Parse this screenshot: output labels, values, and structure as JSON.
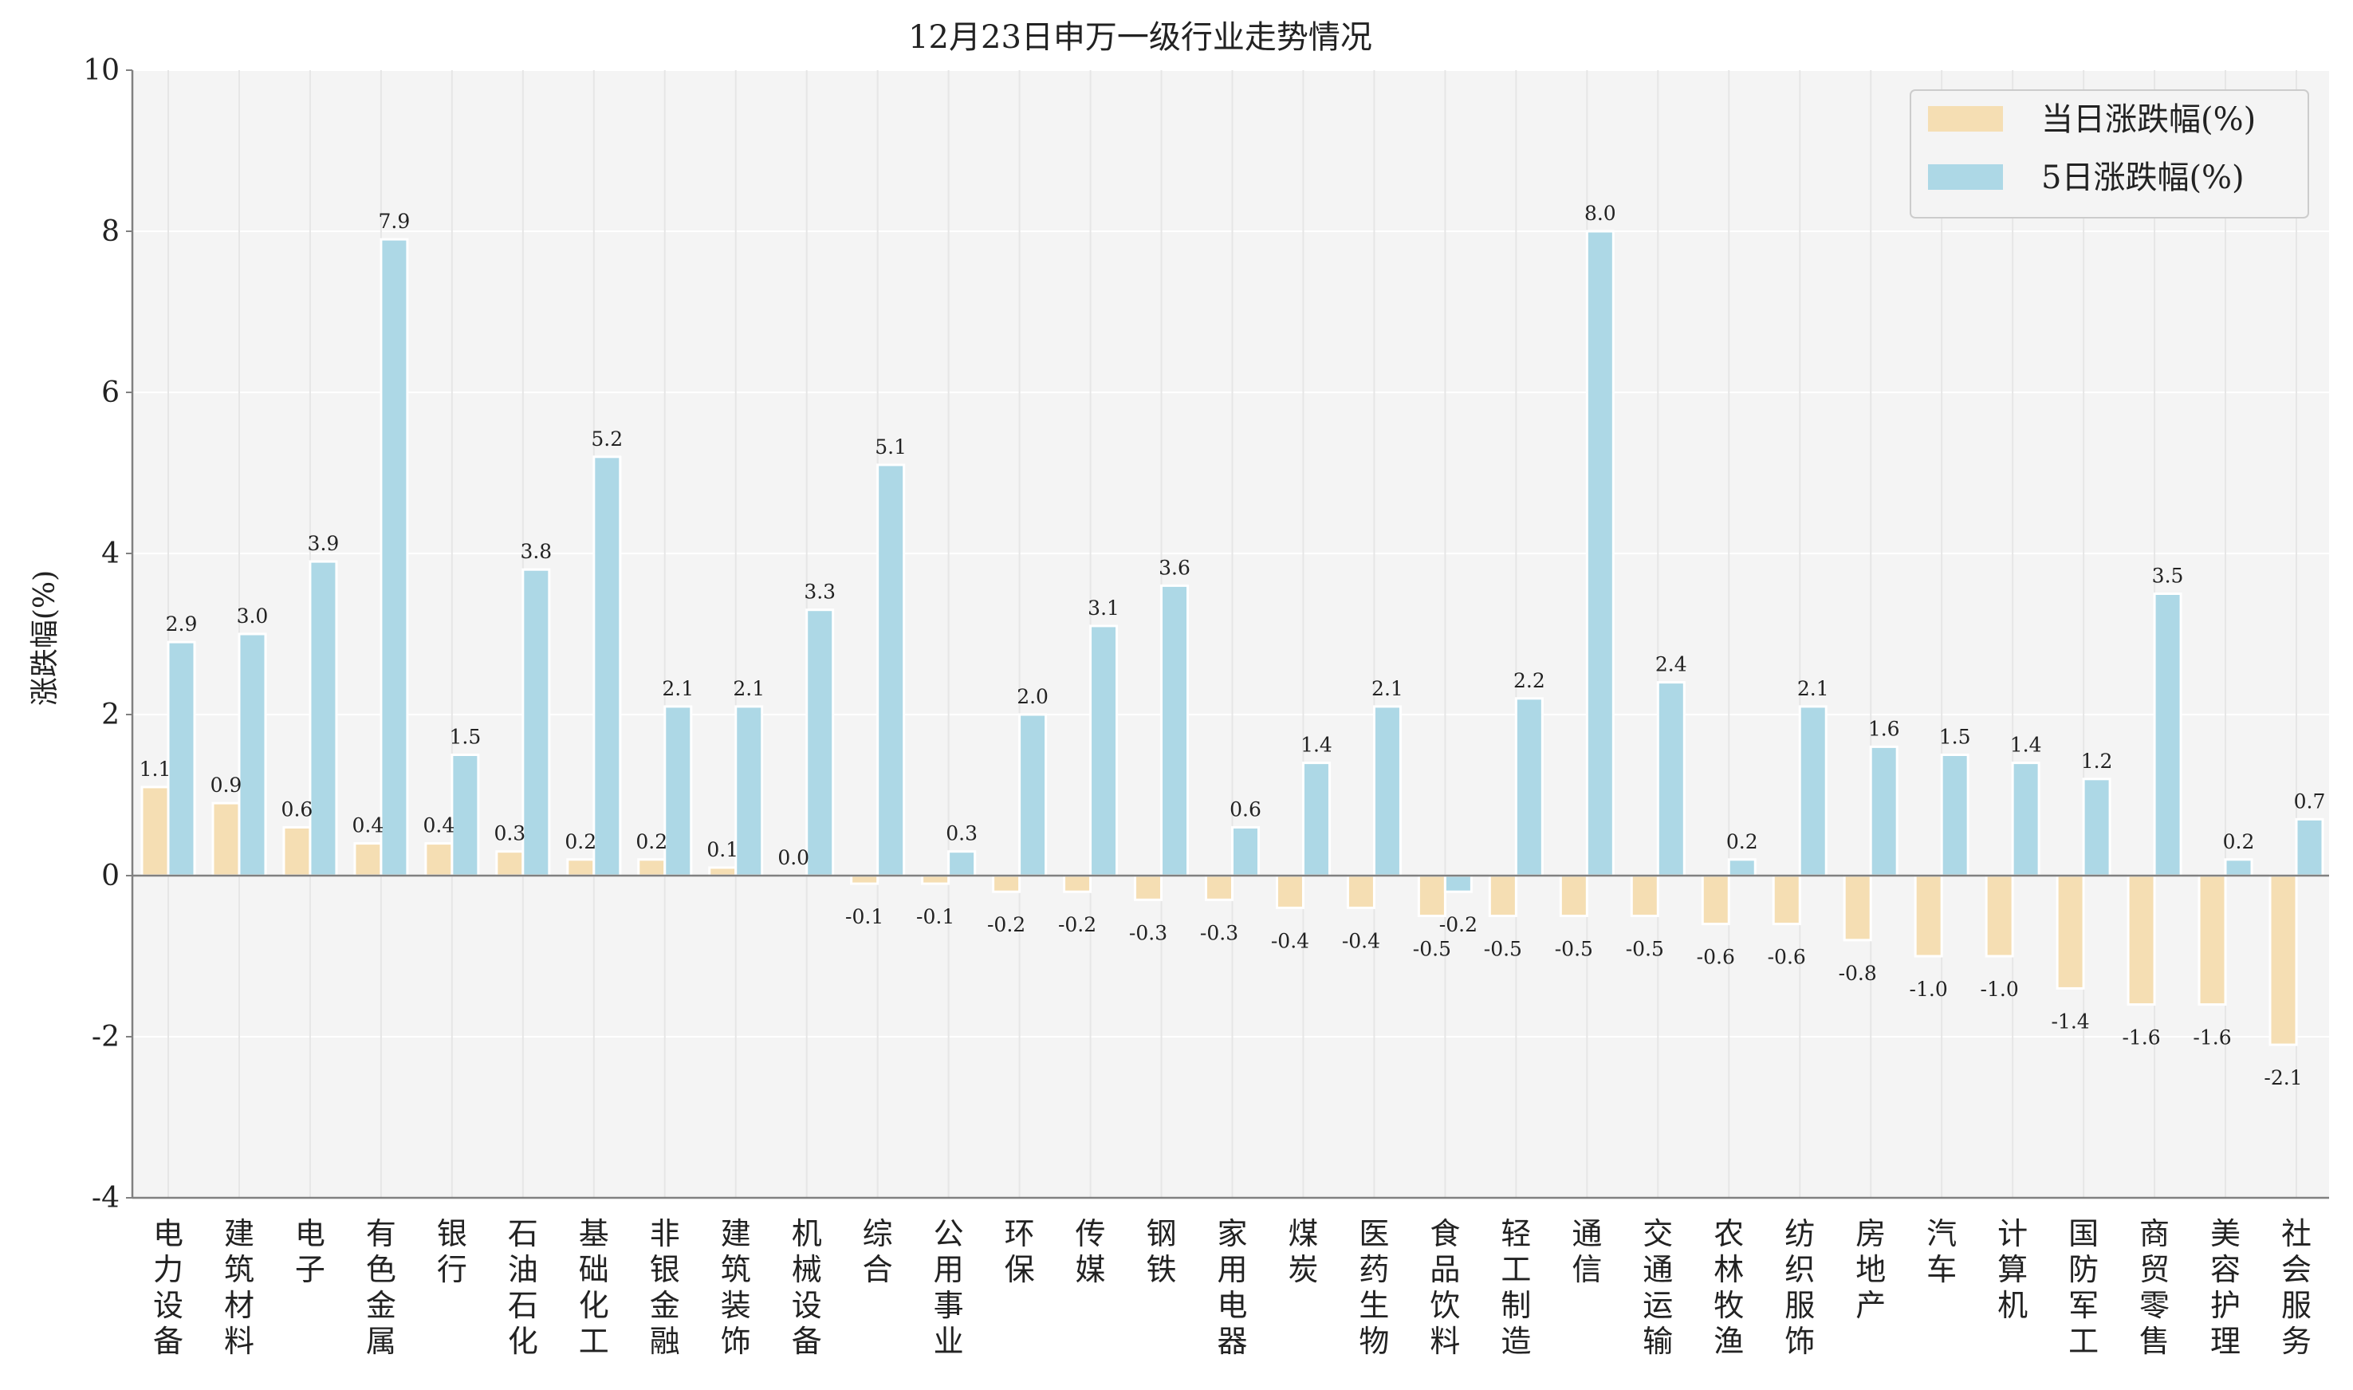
{
  "chart_data": {
    "type": "bar",
    "title": "12月23日申万一级行业走势情况",
    "xlabel": "",
    "ylabel": "涨跌幅(%)",
    "ylim": [
      -4,
      10
    ],
    "yticks": [
      -4,
      -2,
      0,
      2,
      4,
      6,
      8,
      10
    ],
    "grid": true,
    "legend_position": "top-right",
    "categories": [
      "电力设备",
      "建筑材料",
      "电子",
      "有色金属",
      "银行",
      "石油石化",
      "基础化工",
      "非银金融",
      "建筑装饰",
      "机械设备",
      "综合",
      "公用事业",
      "环保",
      "传媒",
      "钢铁",
      "家用电器",
      "煤炭",
      "医药生物",
      "食品饮料",
      "轻工制造",
      "通信",
      "交通运输",
      "农林牧渔",
      "纺织服饰",
      "房地产",
      "汽车",
      "计算机",
      "国防军工",
      "商贸零售",
      "美容护理",
      "社会服务"
    ],
    "series": [
      {
        "name": "当日涨跌幅(%)",
        "color": "#f5deb3",
        "values": [
          1.1,
          0.9,
          0.6,
          0.4,
          0.4,
          0.3,
          0.2,
          0.2,
          0.1,
          0.0,
          -0.1,
          -0.1,
          -0.2,
          -0.2,
          -0.3,
          -0.3,
          -0.4,
          -0.4,
          -0.5,
          -0.5,
          -0.5,
          -0.5,
          -0.6,
          -0.6,
          -0.8,
          -1.0,
          -1.0,
          -1.4,
          -1.6,
          -1.6,
          -2.1
        ]
      },
      {
        "name": "5日涨跌幅(%)",
        "color": "#add8e6",
        "values": [
          2.9,
          3.0,
          3.9,
          7.9,
          1.5,
          3.8,
          5.2,
          2.1,
          2.1,
          3.3,
          5.1,
          0.3,
          2.0,
          3.1,
          3.6,
          0.6,
          1.4,
          2.1,
          -0.2,
          2.2,
          8.0,
          2.4,
          0.2,
          2.1,
          1.6,
          1.5,
          1.4,
          1.2,
          3.5,
          0.2,
          0.7
        ]
      }
    ]
  }
}
